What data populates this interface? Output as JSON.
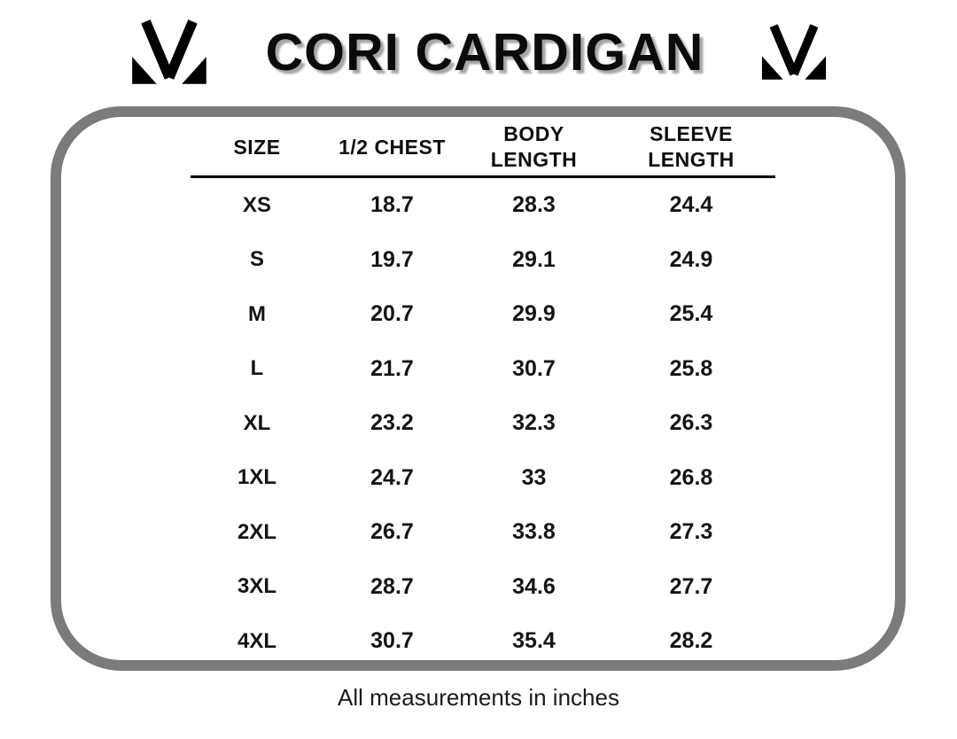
{
  "header": {
    "title": "CORI CARDIGAN",
    "logo_name": "brand-monogram-m"
  },
  "table": {
    "columns": [
      "SIZE",
      "1/2 CHEST",
      "BODY LENGTH",
      "SLEEVE LENGTH"
    ],
    "rows": [
      [
        "XS",
        "18.7",
        "28.3",
        "24.4"
      ],
      [
        "S",
        "19.7",
        "29.1",
        "24.9"
      ],
      [
        "M",
        "20.7",
        "29.9",
        "25.4"
      ],
      [
        "L",
        "21.7",
        "30.7",
        "25.8"
      ],
      [
        "XL",
        "23.2",
        "32.3",
        "26.3"
      ],
      [
        "1XL",
        "24.7",
        "33",
        "26.8"
      ],
      [
        "2XL",
        "26.7",
        "33.8",
        "27.3"
      ],
      [
        "3XL",
        "28.7",
        "34.6",
        "27.7"
      ],
      [
        "4XL",
        "30.7",
        "35.4",
        "28.2"
      ]
    ]
  },
  "footer": {
    "note": "All measurements in inches"
  },
  "colors": {
    "frame_border": "#7b7b7b",
    "title_shadow": "#a6a6a6",
    "text": "#131313",
    "background": "#ffffff"
  }
}
